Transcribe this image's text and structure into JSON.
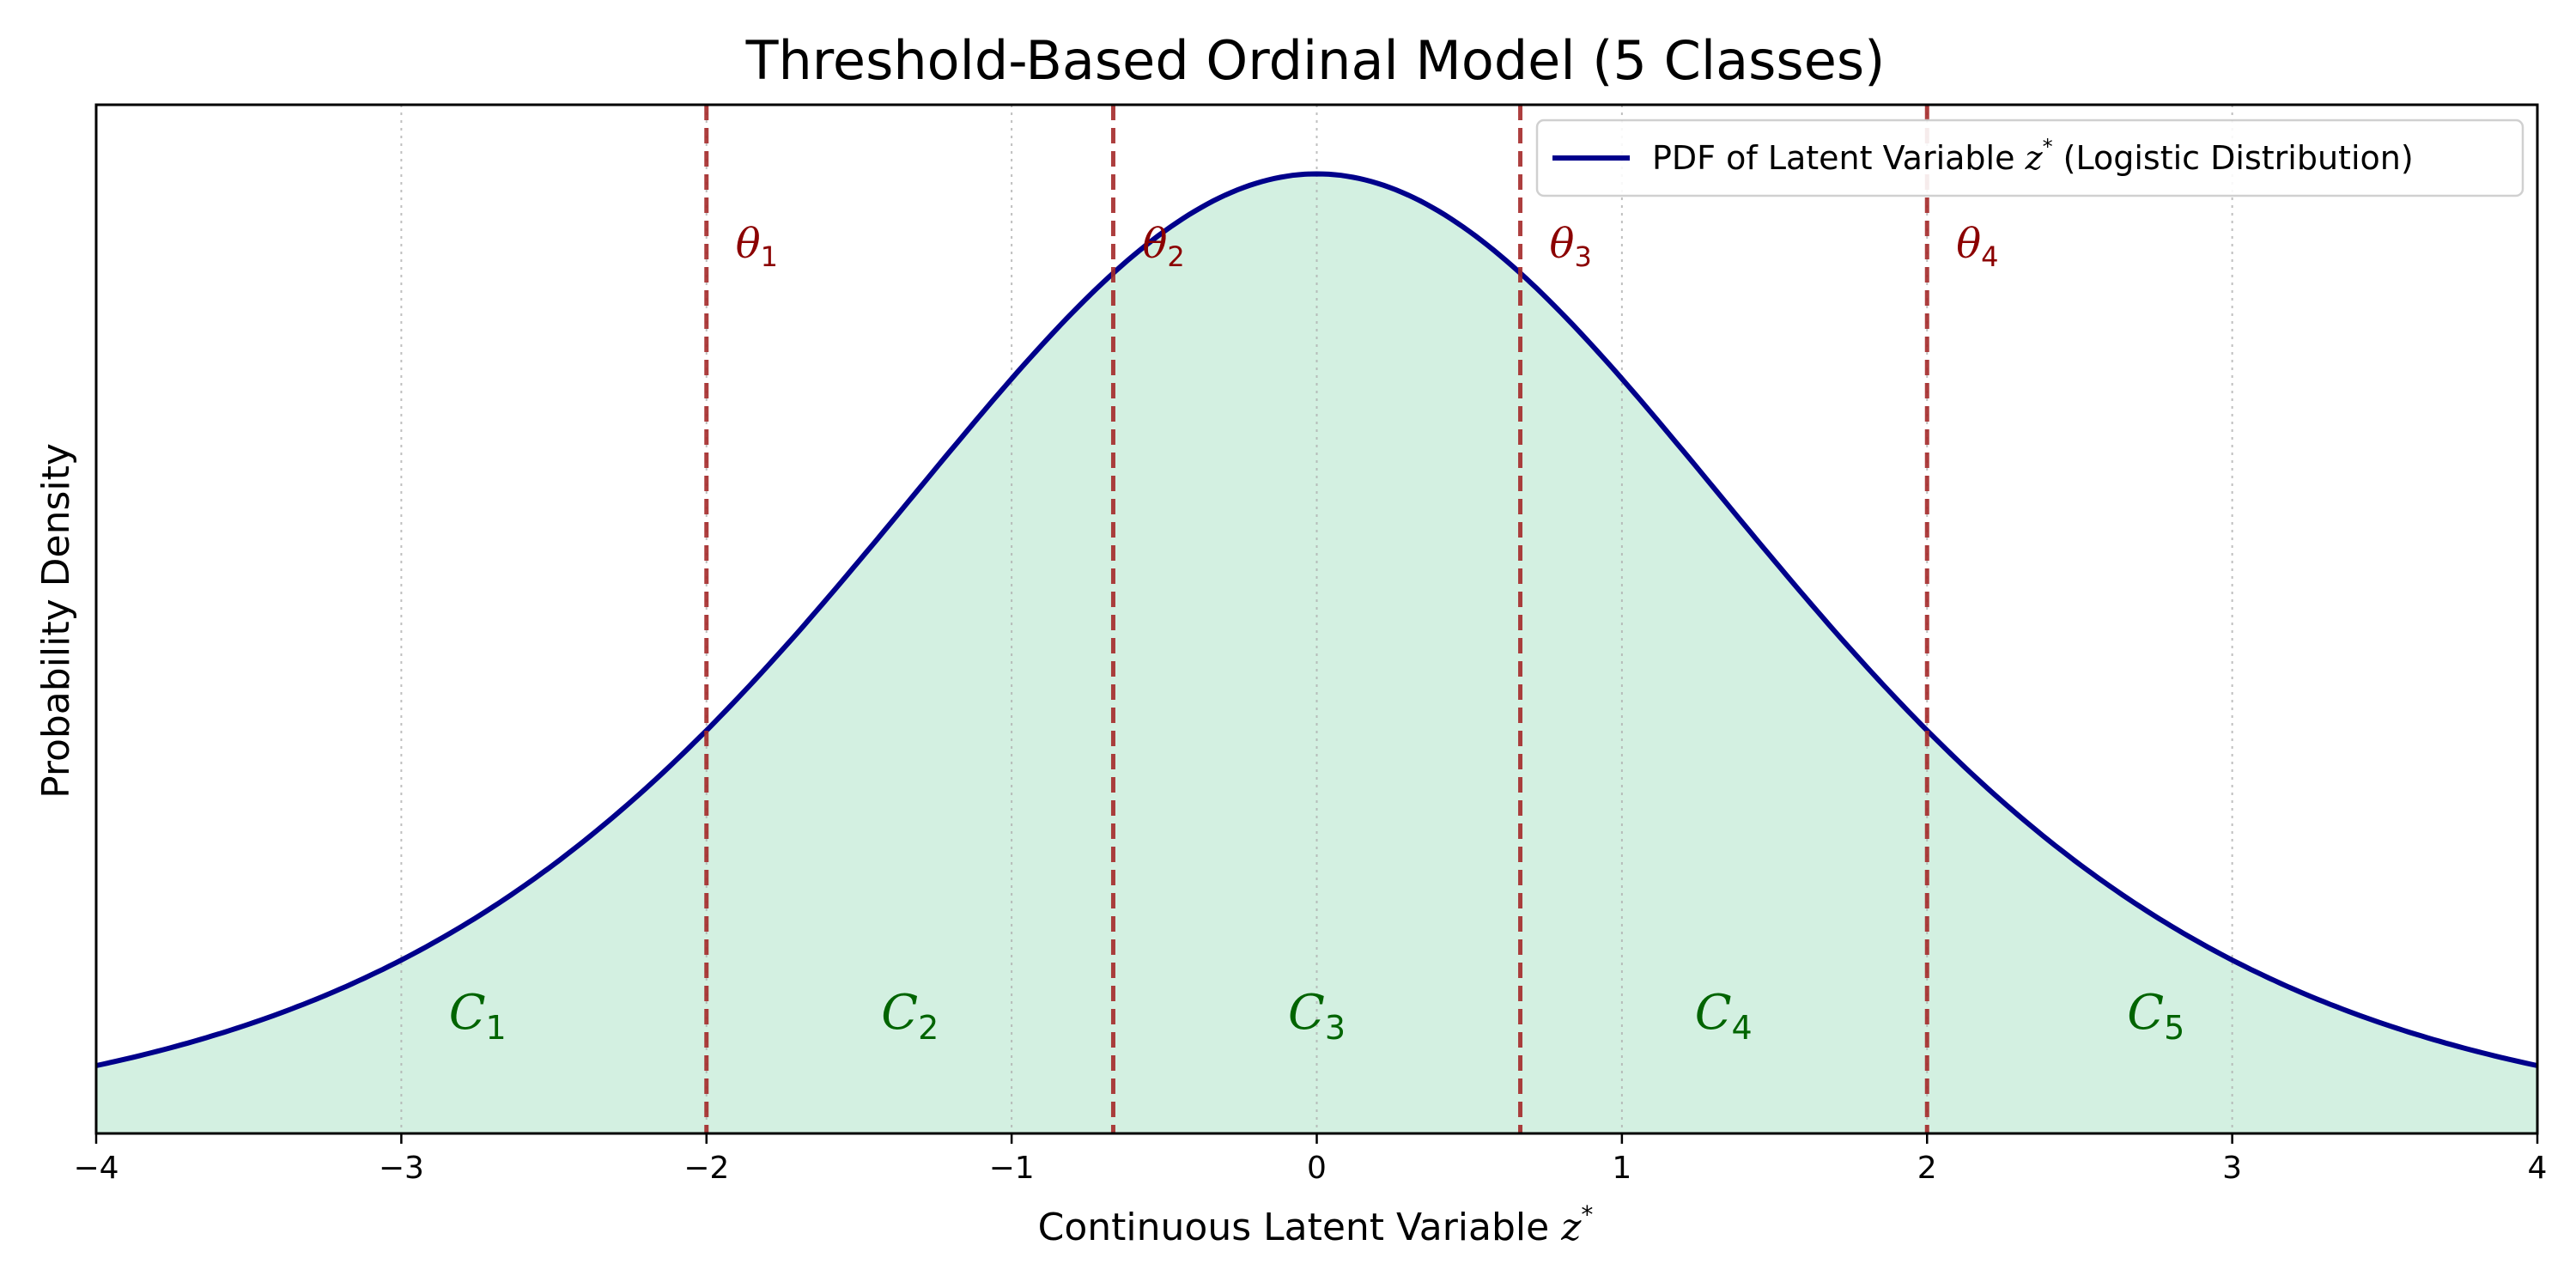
{
  "chart_data": {
    "type": "area",
    "title": "Threshold-Based Ordinal Model (5 Classes)",
    "xlabel": "Continuous Latent Variable z*",
    "ylabel": "Probability Density",
    "xlim": [
      -4,
      4
    ],
    "ylim": [
      0,
      0.268
    ],
    "x_ticks": [
      -4,
      -3,
      -2,
      -1,
      0,
      1,
      2,
      3,
      4
    ],
    "y_ticks": [],
    "grid": "x-dotted",
    "legend_position": "top-right",
    "series": [
      {
        "name": "PDF of Latent Variable z* (Logistic Distribution)",
        "label_main": "PDF of Latent Variable ",
        "label_var": "z",
        "label_sup": "*",
        "label_tail": " (Logistic Distribution)",
        "distribution": "logistic",
        "location": 0,
        "scale": 1,
        "x": [
          -4,
          -3.5,
          -3,
          -2.5,
          -2,
          -1.5,
          -1,
          -0.5,
          0,
          0.5,
          1,
          1.5,
          2,
          2.5,
          3,
          3.5,
          4
        ],
        "y": [
          0.0177,
          0.0285,
          0.0452,
          0.0701,
          0.105,
          0.1491,
          0.1966,
          0.235,
          0.25,
          0.235,
          0.1966,
          0.1491,
          0.105,
          0.0701,
          0.0452,
          0.0285,
          0.0177
        ],
        "color": "#00008b",
        "fill_color": "#d3f0e1"
      }
    ],
    "thresholds": [
      {
        "label": "θ",
        "sub": "1",
        "x": -2.0
      },
      {
        "label": "θ",
        "sub": "2",
        "x": -0.667
      },
      {
        "label": "θ",
        "sub": "3",
        "x": 0.667
      },
      {
        "label": "θ",
        "sub": "4",
        "x": 2.0
      }
    ],
    "threshold_color": "#a52a2a",
    "classes": [
      {
        "label": "C",
        "sub": "1",
        "x": -2.75
      },
      {
        "label": "C",
        "sub": "2",
        "x": -1.333
      },
      {
        "label": "C",
        "sub": "3",
        "x": 0.0
      },
      {
        "label": "C",
        "sub": "4",
        "x": 1.333
      },
      {
        "label": "C",
        "sub": "5",
        "x": 2.75
      }
    ],
    "class_color": "#006400",
    "axis_label_parts": {
      "xlabel_main": "Continuous Latent Variable ",
      "xlabel_var": "z",
      "xlabel_sup": "*"
    }
  }
}
